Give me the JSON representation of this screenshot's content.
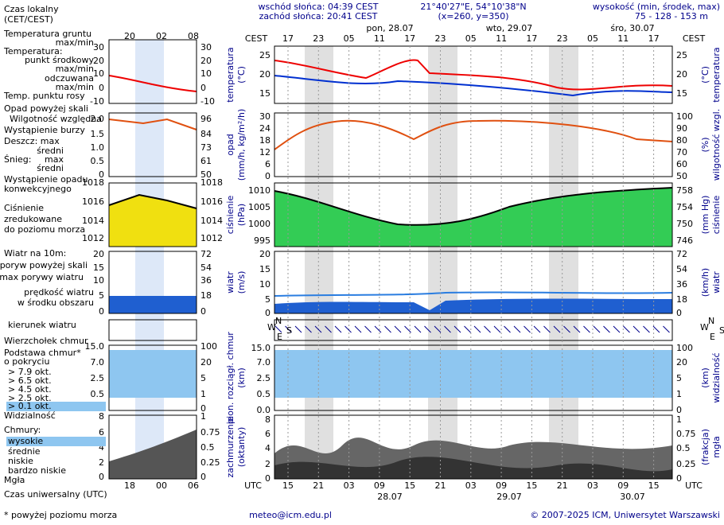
{
  "header": {
    "sunrise": "wschód słońca: 04:39 CEST",
    "sunset": "zachód słońca: 20:41 CEST",
    "coords": "21°40'27\"E, 54°10'38\"N",
    "grid": "(x=260, y=350)",
    "elevation_title": "wysokość (min, środek, max)",
    "elevation": "75 - 128 - 153 m"
  },
  "days": [
    "pon, 28.07",
    "wto, 29.07",
    "śro, 30.07"
  ],
  "tz_local": "CEST",
  "tz_utc": "UTC",
  "local_hours": [
    "17",
    "23",
    "05",
    "11",
    "17",
    "23",
    "05",
    "11",
    "17",
    "23",
    "05",
    "11",
    "17"
  ],
  "utc_hours": [
    "15",
    "21",
    "03",
    "09",
    "15",
    "21",
    "03",
    "09",
    "15",
    "21",
    "03",
    "09",
    "15"
  ],
  "dates": [
    "28.07",
    "29.07",
    "30.07"
  ],
  "panels": [
    {
      "left_label": [
        "temperatura",
        "(°C)"
      ],
      "right_label": [
        "(°C)",
        "temperatura"
      ],
      "left_ticks": [
        "25",
        "20",
        "15"
      ],
      "right_ticks": [
        "25",
        "20",
        "15"
      ]
    },
    {
      "left_label": [
        "opad",
        "(mm/h, kg/m²/h)"
      ],
      "right_label": [
        "(%)",
        "wilgotność wzgl."
      ],
      "left_ticks": [
        "30",
        "24",
        "18",
        "12",
        "6",
        "0"
      ],
      "right_ticks": [
        "100",
        "90",
        "80",
        "70",
        "60",
        "50"
      ]
    },
    {
      "left_label": [
        "ciśnienie",
        "(hPa)"
      ],
      "right_label": [
        "(mm Hg)",
        "ciśnienie"
      ],
      "left_ticks": [
        "1010",
        "1005",
        "1000",
        "995"
      ],
      "right_ticks": [
        "758",
        "754",
        "750",
        "746"
      ]
    },
    {
      "left_label": [
        "wiatr",
        "(m/s)"
      ],
      "right_label": [
        "(km/h)",
        "wiatr"
      ],
      "left_ticks": [
        "20",
        "15",
        "10",
        "5",
        "0"
      ],
      "right_ticks": [
        "72",
        "54",
        "36",
        "18",
        "0"
      ]
    },
    {
      "left_label": [
        "pion. rozciągł. chmur",
        "(km)"
      ],
      "right_label": [
        "(km)",
        "widzialność"
      ],
      "left_ticks": [
        "15.0",
        "7.0",
        "2.5",
        "0.5",
        "0.0"
      ],
      "right_ticks": [
        "100",
        "20",
        "5",
        "1",
        "0"
      ]
    },
    {
      "left_label": [
        "zachmurzenie",
        "(oktanty)"
      ],
      "right_label": [
        "(frakcja)",
        "mgła"
      ],
      "left_ticks": [
        "8",
        "6",
        "4",
        "2",
        "0"
      ],
      "right_ticks": [
        "1",
        "0.75",
        "0.5",
        "0.25",
        "0"
      ]
    }
  ],
  "compass": [
    "N",
    "W",
    "E",
    "S"
  ],
  "legend": {
    "local_time": [
      "Czas lokalny",
      "(CET/CEST)"
    ],
    "mini_local_hours": [
      "20",
      "02",
      "08"
    ],
    "mini_utc_hours": [
      "18",
      "00",
      "06"
    ],
    "utc_time": "Czas uniwersalny (UTC)",
    "items": [
      "Temperatura gruntu",
      "max/min",
      "Temperatura:",
      "punkt środkowy",
      "max/min",
      "odczuwana",
      "max/min",
      "Temp. punktu rosy",
      "Opad powyżej skali",
      "Wilgotność względna",
      "Wystąpienie burzy",
      "Deszcz: max",
      "średni",
      "Śnieg:",
      "max",
      "średni",
      "Wystąpienie opadu",
      "konwekcyjnego",
      "Ciśnienie",
      "zredukowane",
      "do poziomu morza",
      "Wiatr na 10m:",
      "poryw powyżej skali",
      "max porywy wiatru",
      "prędkość wiatru",
      "w środku obszaru",
      "kierunek wiatru",
      "Wierzchołek chmur",
      "Podstawa chmur*",
      "o pokryciu",
      "> 7.9 okt.",
      "> 6.5 okt.",
      "> 4.5 okt.",
      "> 2.5 okt.",
      "> 0.1 okt.",
      "Widzialność",
      "Chmury:",
      "wysokie",
      "średnie",
      "niskie",
      "bardzo niskie",
      "Mgła"
    ],
    "mini_ticks": [
      {
        "left": [
          "30",
          "20",
          "10",
          "0",
          "-10"
        ],
        "right": [
          "30",
          "20",
          "10",
          "0",
          "-10"
        ]
      },
      {
        "left": [
          "2.0",
          "1.5",
          "1.0",
          "0.5",
          "0"
        ],
        "right": [
          "96",
          "84",
          "73",
          "61",
          "50"
        ]
      },
      {
        "left": [
          "1018",
          "1016",
          "1014",
          "1012"
        ],
        "right": [
          "1018",
          "1016",
          "1014",
          "1012"
        ]
      },
      {
        "left": [
          "20",
          "15",
          "10",
          "5",
          "0"
        ],
        "right": [
          "72",
          "54",
          "36",
          "18",
          "0"
        ]
      },
      {
        "left": [
          "15.0",
          "7.0",
          "2.5",
          "0.5",
          "0.0"
        ],
        "right": [
          "100",
          "20",
          "5",
          "1",
          "0"
        ]
      },
      {
        "left": [
          "8",
          "6",
          "4",
          "2",
          "0"
        ],
        "right": [
          "1",
          "0.75",
          "0.5",
          "0.25",
          "0"
        ]
      }
    ]
  },
  "footnote": "* powyżej poziomu morza",
  "footer": {
    "email": "meteo@icm.edu.pl",
    "copyright": "© 2007-2025 ICM, Uniwersytet Warszawski"
  }
}
